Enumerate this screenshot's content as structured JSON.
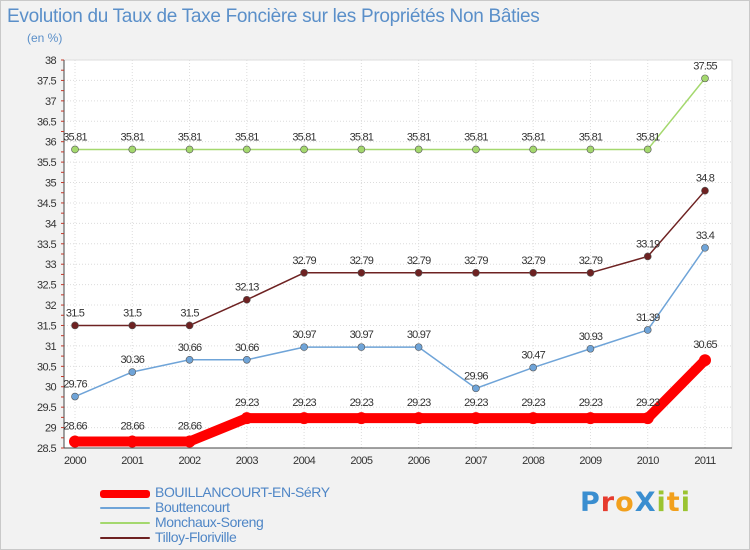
{
  "title": "Evolution du Taux de Taxe Foncière sur les Propriétés Non Bâties",
  "subtitle": "(en %)",
  "logo": {
    "text": "ProXiti",
    "colors": [
      "#3a8ed0",
      "#e63b2e",
      "#f2a01c",
      "#3a8ed0",
      "#9bc431",
      "#f2a01c",
      "#9bc431"
    ]
  },
  "chart_data": {
    "type": "line",
    "categories": [
      "2000",
      "2001",
      "2002",
      "2003",
      "2004",
      "2005",
      "2006",
      "2007",
      "2008",
      "2009",
      "2010",
      "2011"
    ],
    "ylim": [
      28.5,
      38
    ],
    "yticks": [
      "28.5",
      "29",
      "29.5",
      "30",
      "30.5",
      "31",
      "31.5",
      "32",
      "32.5",
      "33",
      "33.5",
      "34",
      "34.5",
      "35",
      "35.5",
      "36",
      "36.5",
      "37",
      "37.5",
      "38"
    ],
    "grid": true,
    "legend_position": "bottom-left",
    "series": [
      {
        "name": "BOUILLANCOURT-EN-SéRY",
        "color": "#ff0000",
        "values": [
          28.66,
          28.66,
          28.66,
          29.23,
          29.23,
          29.23,
          29.23,
          29.23,
          29.23,
          29.23,
          29.23,
          30.65
        ],
        "labels": [
          "28.66",
          "28.66",
          "28.66",
          "29.23",
          "29.23",
          "29.23",
          "29.23",
          "29.23",
          "29.23",
          "29.23",
          "29.23",
          "30.65"
        ]
      },
      {
        "name": "Bouttencourt",
        "color": "#6fa4d8",
        "values": [
          29.76,
          30.36,
          30.66,
          30.66,
          30.97,
          30.97,
          30.97,
          29.96,
          30.47,
          30.93,
          31.39,
          33.4
        ],
        "labels": [
          "29.76",
          "30.36",
          "30.66",
          "30.66",
          "30.97",
          "30.97",
          "30.97",
          "29.96",
          "30.47",
          "30.93",
          "31.39",
          "33.4"
        ]
      },
      {
        "name": "Monchaux-Soreng",
        "color": "#a4d86e",
        "values": [
          35.81,
          35.81,
          35.81,
          35.81,
          35.81,
          35.81,
          35.81,
          35.81,
          35.81,
          35.81,
          35.81,
          37.55
        ],
        "labels": [
          "35.81",
          "35.81",
          "35.81",
          "35.81",
          "35.81",
          "35.81",
          "35.81",
          "35.81",
          "35.81",
          "35.81",
          "35.81",
          "37.55"
        ]
      },
      {
        "name": "Tilloy-Floriville",
        "color": "#6e2222",
        "values": [
          31.5,
          31.5,
          31.5,
          32.13,
          32.79,
          32.79,
          32.79,
          32.79,
          32.79,
          32.79,
          33.19,
          34.8
        ],
        "labels": [
          "31.5",
          "31.5",
          "31.5",
          "32.13",
          "32.79",
          "32.79",
          "32.79",
          "32.79",
          "32.79",
          "32.79",
          "33.19",
          "34.8"
        ]
      }
    ]
  }
}
